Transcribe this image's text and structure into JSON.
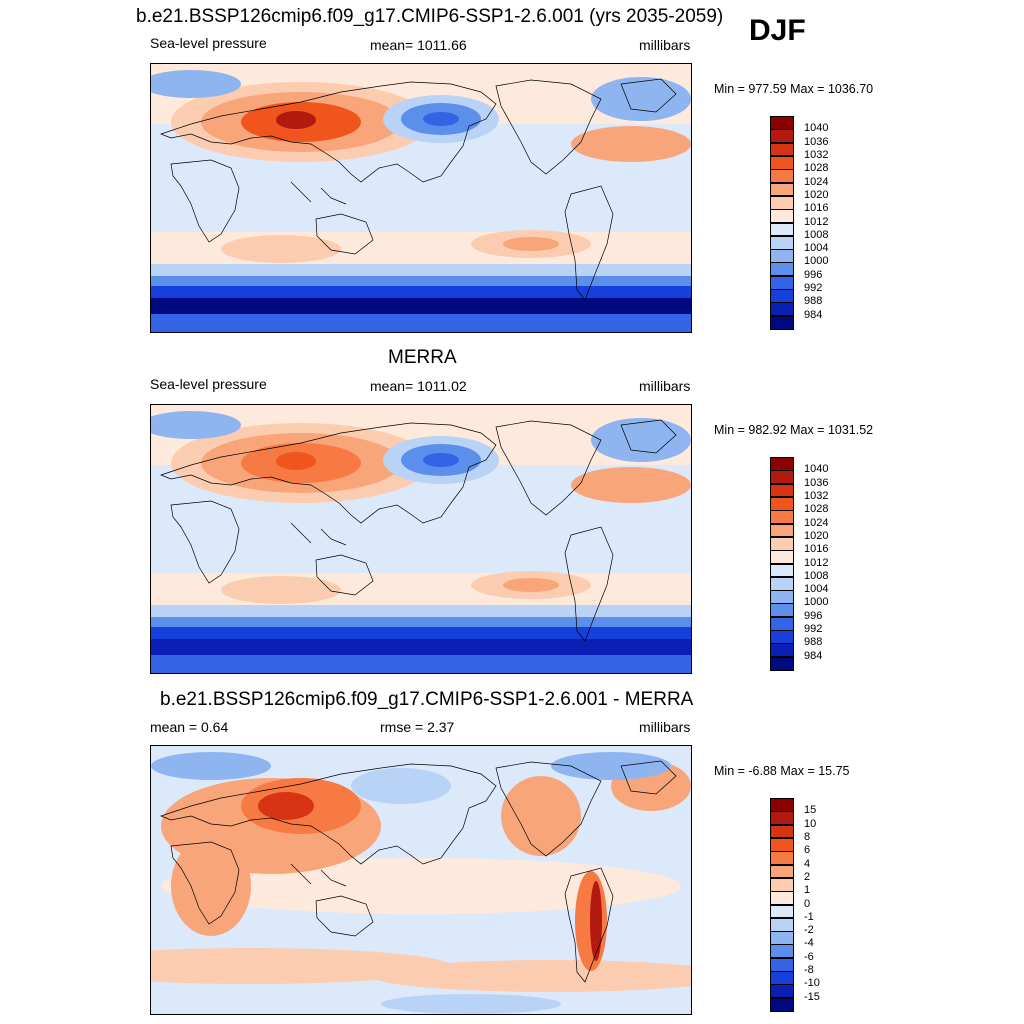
{
  "season": "DJF",
  "panels": [
    {
      "title": "b.e21.BSSP126cmip6.f09_g17.CMIP6-SSP1-2.6.001 (yrs 2035-2059)",
      "left_label": "Sea-level pressure",
      "center_label": "mean= 1011.66",
      "right_label": "millibars",
      "minmax": "Min = 977.59 Max = 1036.70",
      "colorbar": {
        "labels": [
          "1040",
          "1036",
          "1032",
          "1028",
          "1024",
          "1020",
          "1016",
          "1012",
          "1008",
          "1004",
          "1000",
          "996",
          "992",
          "988",
          "984"
        ],
        "colors": [
          "#8b0000",
          "#b2190f",
          "#d63413",
          "#f0551e",
          "#f77a45",
          "#f9a57a",
          "#fcccb0",
          "#feeadc",
          "#dce9fb",
          "#b9d3f6",
          "#8fb5f1",
          "#5c8eec",
          "#3463e6",
          "#163fdc",
          "#0a1fb4",
          "#000a80"
        ]
      }
    },
    {
      "title": "MERRA",
      "left_label": "Sea-level pressure",
      "center_label": "mean= 1011.02",
      "right_label": "millibars",
      "minmax": "Min = 982.92 Max = 1031.52",
      "colorbar": {
        "labels": [
          "1040",
          "1036",
          "1032",
          "1028",
          "1024",
          "1020",
          "1016",
          "1012",
          "1008",
          "1004",
          "1000",
          "996",
          "992",
          "988",
          "984"
        ],
        "colors": [
          "#8b0000",
          "#b2190f",
          "#d63413",
          "#f0551e",
          "#f77a45",
          "#f9a57a",
          "#fcccb0",
          "#feeadc",
          "#dce9fb",
          "#b9d3f6",
          "#8fb5f1",
          "#5c8eec",
          "#3463e6",
          "#163fdc",
          "#0a1fb4",
          "#000a80"
        ]
      }
    },
    {
      "title": "b.e21.BSSP126cmip6.f09_g17.CMIP6-SSP1-2.6.001 - MERRA",
      "left_label": "mean =   0.64",
      "center_label": "rmse =   2.37",
      "right_label": "millibars",
      "minmax": "Min =  -6.88 Max =  15.75",
      "colorbar": {
        "labels": [
          "15",
          "10",
          "8",
          "6",
          "4",
          "2",
          "1",
          "0",
          "-1",
          "-2",
          "-4",
          "-6",
          "-8",
          "-10",
          "-15"
        ],
        "colors": [
          "#8b0000",
          "#b2190f",
          "#d63413",
          "#f0551e",
          "#f77a45",
          "#f9a57a",
          "#fcccb0",
          "#feeadc",
          "#dce9fb",
          "#b9d3f6",
          "#8fb5f1",
          "#5c8eec",
          "#3463e6",
          "#163fdc",
          "#0a1fb4",
          "#000a80"
        ]
      }
    }
  ]
}
